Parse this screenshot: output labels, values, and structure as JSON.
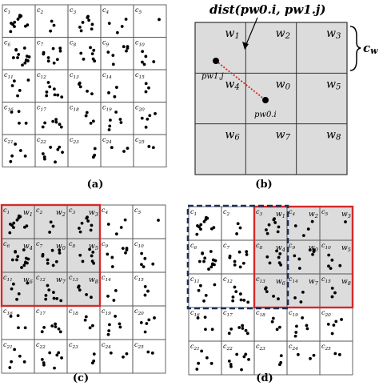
{
  "panel_a": {
    "caption": "(a)",
    "cells": [
      "c1",
      "c2",
      "c3",
      "c4",
      "c5",
      "c6",
      "c7",
      "c8",
      "c9",
      "c10",
      "c11",
      "c12",
      "c13",
      "c14",
      "c15",
      "c16",
      "c17",
      "c18",
      "c19",
      "c20",
      "c21",
      "c22",
      "c23",
      "c24",
      "c25"
    ]
  },
  "panel_b": {
    "caption": "(b)",
    "windows": [
      "w1",
      "w2",
      "w3",
      "w4",
      "w0",
      "w5",
      "w6",
      "w7",
      "w8"
    ],
    "distance_label": "dist(pw0.i, pw1.j)",
    "point_a_label": "pw1.j",
    "point_b_label": "pw0.i",
    "brace_label": "cw"
  },
  "panel_c": {
    "caption": "(c)",
    "window_labels": [
      "w1",
      "w2",
      "w3",
      "w4",
      "w0",
      "w5",
      "w6",
      "w7",
      "w8"
    ]
  },
  "panel_d": {
    "caption": "(d)",
    "window_labels": [
      "w1",
      "w2",
      "w3",
      "w4",
      "w0",
      "w5",
      "w6",
      "w7",
      "w8"
    ]
  },
  "colors": {
    "highlight_red": "#d42a2a",
    "dashed_navy": "#1c2e55",
    "shade_gray": "#dcdcdc",
    "dist_line_red": "#e0201c"
  }
}
